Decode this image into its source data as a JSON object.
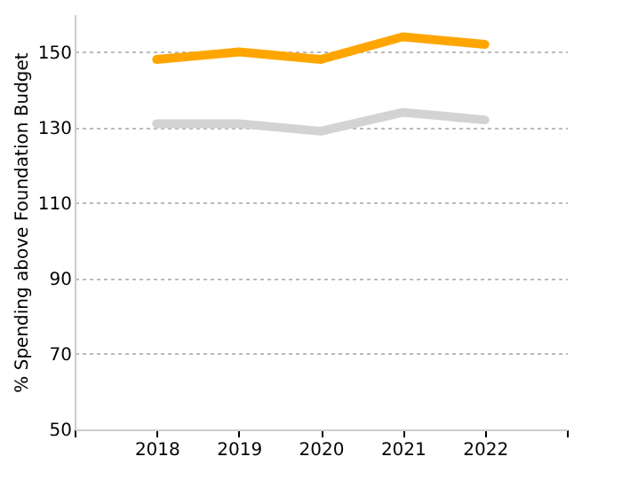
{
  "chart_data": {
    "type": "line",
    "ylabel": "% Spending above Foundation Budget",
    "x": [
      2018,
      2019,
      2020,
      2021,
      2022
    ],
    "series": [
      {
        "color": "#ffa500",
        "values": [
          148,
          150,
          148,
          154,
          152
        ]
      },
      {
        "color": "#d3d3d3",
        "values": [
          131,
          131,
          129,
          134,
          132
        ]
      }
    ],
    "xlim": [
      2017,
      2023
    ],
    "xticks": [
      {
        "value": 2017,
        "label": null
      },
      2018,
      2019,
      2020,
      2021,
      2022,
      {
        "value": 2023,
        "label": null
      }
    ],
    "ylim": [
      50,
      160
    ],
    "yticks": [
      50,
      70,
      90,
      110,
      130,
      150
    ],
    "grid": "y",
    "legend": false,
    "marker": "none",
    "line_style": "solid"
  }
}
